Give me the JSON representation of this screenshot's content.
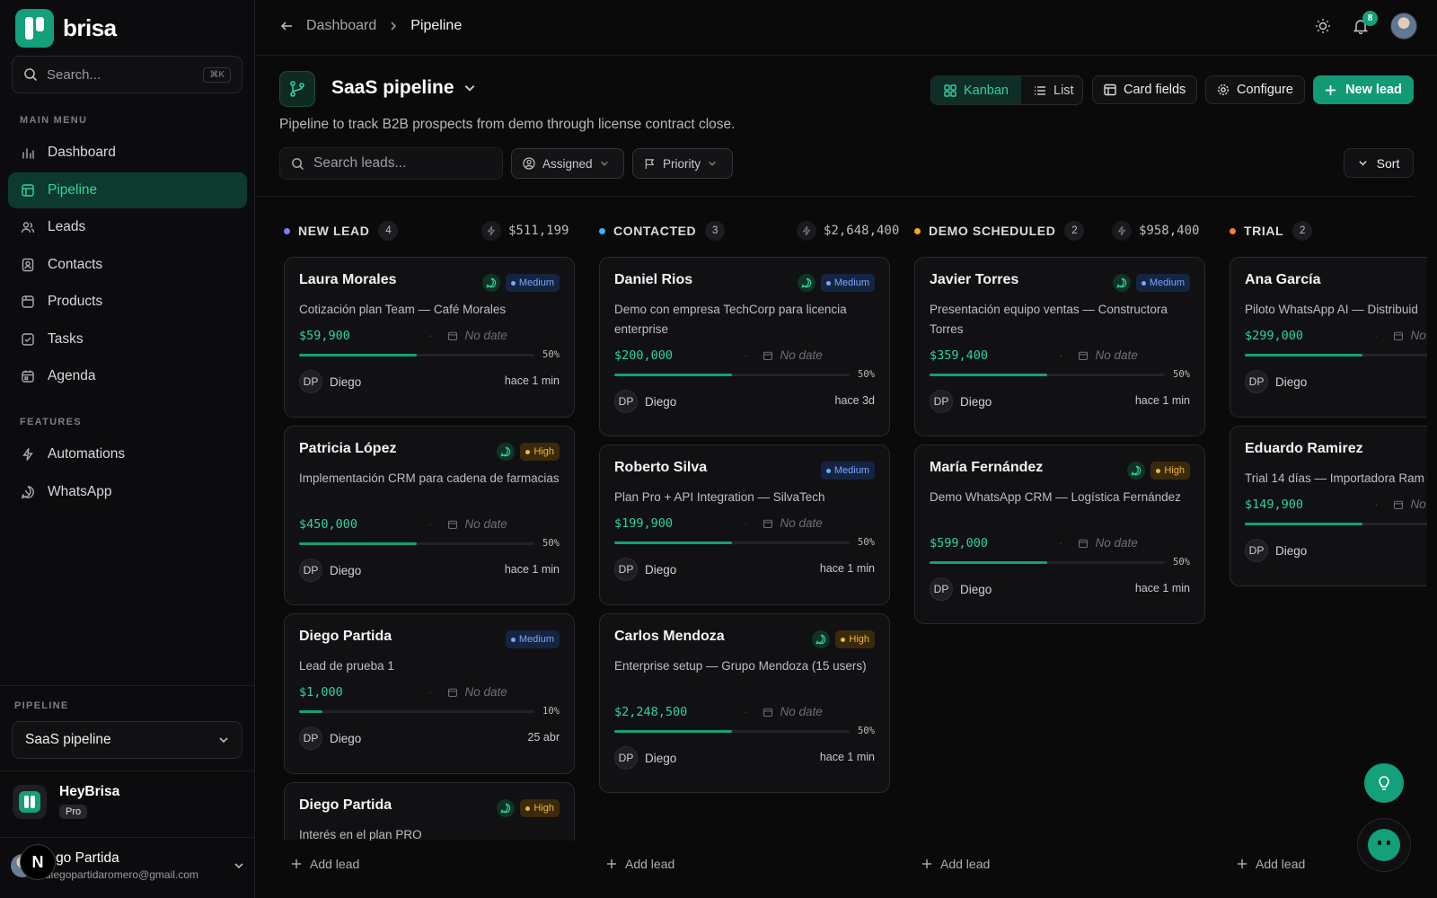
{
  "brand": {
    "name": "brisa"
  },
  "sidebar": {
    "search_placeholder": "Search...",
    "search_shortcut": "⌘K",
    "main_menu_title": "MAIN MENU",
    "main_items": [
      {
        "label": "Dashboard",
        "icon": "chart-icon"
      },
      {
        "label": "Pipeline",
        "icon": "kanban-icon",
        "active": true
      },
      {
        "label": "Leads",
        "icon": "users-icon"
      },
      {
        "label": "Contacts",
        "icon": "contacts-icon"
      },
      {
        "label": "Products",
        "icon": "box-icon"
      },
      {
        "label": "Tasks",
        "icon": "checkbox-icon"
      },
      {
        "label": "Agenda",
        "icon": "calendar-icon"
      }
    ],
    "features_title": "FEATURES",
    "feature_items": [
      {
        "label": "Automations",
        "icon": "bolt-icon"
      },
      {
        "label": "WhatsApp",
        "icon": "whatsapp-icon"
      }
    ],
    "pipeline_title": "PIPELINE",
    "pipeline_value": "SaaS pipeline",
    "org": {
      "name": "HeyBrisa",
      "plan": "Pro"
    },
    "user": {
      "name": "iego Partida",
      "email": "diegopartidaromero@gmail.com",
      "badge": "N"
    }
  },
  "topbar": {
    "crumb_parent": "Dashboard",
    "crumb_current": "Pipeline",
    "notif_count": "8"
  },
  "header": {
    "title": "SaaS pipeline",
    "description": "Pipeline to track B2B prospects from demo through license contract close.",
    "view_kanban": "Kanban",
    "view_list": "List",
    "card_fields": "Card fields",
    "configure": "Configure",
    "new_lead": "New lead",
    "search_placeholder": "Search leads...",
    "filter_assigned": "Assigned",
    "filter_priority": "Priority",
    "sort": "Sort"
  },
  "board": {
    "add_lead": "Add lead",
    "columns": [
      {
        "name": "NEW LEAD",
        "count": "4",
        "total": "$511,199",
        "color": "#7c7cff",
        "cards": [
          {
            "name": "Laura Morales",
            "whatsapp": true,
            "priority": "Medium",
            "desc": "Cotización plan Team — Café Morales",
            "amount": "$59,900",
            "date": "No date",
            "progress": 50,
            "pct": "50%",
            "owner_initials": "DP",
            "owner": "Diego",
            "ago": "hace 1 min"
          },
          {
            "name": "Patricia López",
            "whatsapp": true,
            "priority": "High",
            "desc": "Implementación CRM para cadena de farmacias",
            "amount": "$450,000",
            "date": "No date",
            "progress": 50,
            "pct": "50%",
            "owner_initials": "DP",
            "owner": "Diego",
            "ago": "hace 1 min"
          },
          {
            "name": "Diego Partida",
            "whatsapp": false,
            "priority": "Medium",
            "desc": "Lead de prueba 1",
            "amount": "$1,000",
            "date": "No date",
            "progress": 10,
            "pct": "10%",
            "owner_initials": "DP",
            "owner": "Diego",
            "ago": "25 abr"
          },
          {
            "name": "Diego Partida",
            "whatsapp": true,
            "priority": "High",
            "desc": "Interés en el plan PRO"
          }
        ]
      },
      {
        "name": "CONTACTED",
        "count": "3",
        "total": "$2,648,400",
        "color": "#38b6ff",
        "cards": [
          {
            "name": "Daniel Rios",
            "whatsapp": true,
            "priority": "Medium",
            "desc": "Demo con empresa TechCorp para licencia enterprise",
            "amount": "$200,000",
            "date": "No date",
            "progress": 50,
            "pct": "50%",
            "owner_initials": "DP",
            "owner": "Diego",
            "ago": "hace 3d"
          },
          {
            "name": "Roberto Silva",
            "whatsapp": false,
            "priority": "Medium",
            "desc": "Plan Pro + API Integration — SilvaTech",
            "amount": "$199,900",
            "date": "No date",
            "progress": 50,
            "pct": "50%",
            "owner_initials": "DP",
            "owner": "Diego",
            "ago": "hace 1 min"
          },
          {
            "name": "Carlos Mendoza",
            "whatsapp": true,
            "priority": "High",
            "desc": "Enterprise setup — Grupo Mendoza (15 users)",
            "amount": "$2,248,500",
            "date": "No date",
            "progress": 50,
            "pct": "50%",
            "owner_initials": "DP",
            "owner": "Diego",
            "ago": "hace 1 min"
          }
        ]
      },
      {
        "name": "DEMO SCHEDULED",
        "count": "2",
        "total": "$958,400",
        "color": "#f5a623",
        "cards": [
          {
            "name": "Javier Torres",
            "whatsapp": true,
            "priority": "Medium",
            "desc": "Presentación equipo ventas — Constructora Torres",
            "amount": "$359,400",
            "date": "No date",
            "progress": 50,
            "pct": "50%",
            "owner_initials": "DP",
            "owner": "Diego",
            "ago": "hace 1 min"
          },
          {
            "name": "María Fernández",
            "whatsapp": true,
            "priority": "High",
            "desc": "Demo WhatsApp CRM — Logística Fernández",
            "amount": "$599,000",
            "date": "No date",
            "progress": 50,
            "pct": "50%",
            "owner_initials": "DP",
            "owner": "Diego",
            "ago": "hace 1 min"
          }
        ]
      },
      {
        "name": "TRIAL",
        "count": "2",
        "total": "",
        "color": "#ff7a2f",
        "cards": [
          {
            "name": "Ana García",
            "whatsapp": false,
            "priority": "",
            "desc": "Piloto WhatsApp AI — Distribuid",
            "amount": "$299,000",
            "date": "No",
            "progress": 50,
            "pct": "",
            "owner_initials": "DP",
            "owner": "Diego",
            "ago": ""
          },
          {
            "name": "Eduardo Ramirez",
            "whatsapp": false,
            "priority": "",
            "desc": "Trial 14 días — Importadora Ram",
            "amount": "$149,900",
            "date": "No",
            "progress": 50,
            "pct": "",
            "owner_initials": "DP",
            "owner": "Diego",
            "ago": ""
          }
        ]
      }
    ]
  }
}
